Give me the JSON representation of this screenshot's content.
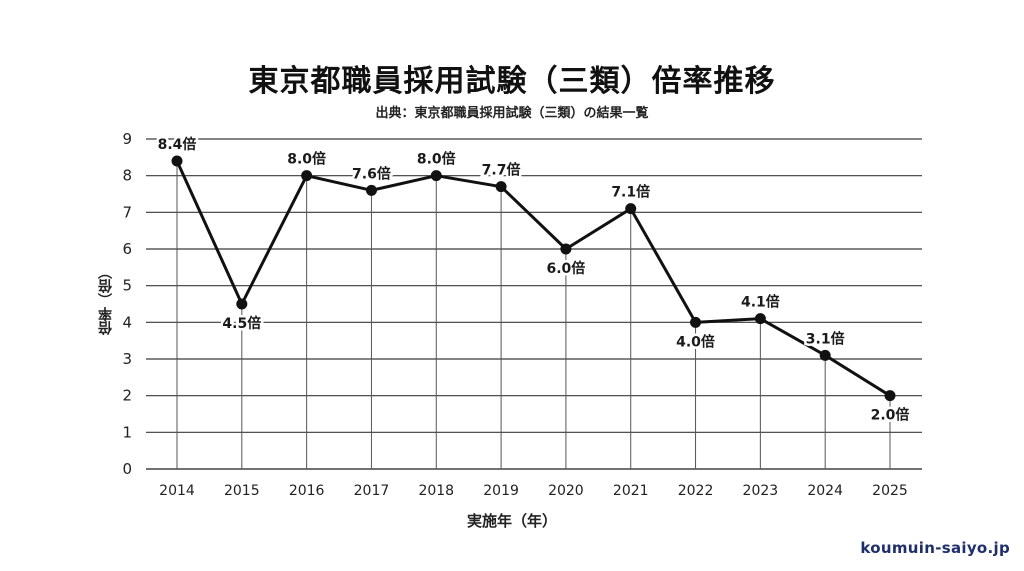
{
  "header": {
    "title": "東京都職員採用試験（三類）倍率推移",
    "subtitle": "出典：東京都職員採用試験（三類）の結果一覧"
  },
  "axes": {
    "xlabel": "実施年（年）",
    "ylabel": "倍率（倍）"
  },
  "watermark": "koumuin-saiyo.jp",
  "colors": {
    "line": "#111111",
    "grid": "#333333",
    "watermark": "#1f2f6b"
  },
  "chart_data": {
    "type": "line",
    "title": "東京都職員採用試験（三類）倍率推移",
    "subtitle": "出典：東京都職員採用試験（三類）の結果一覧",
    "xlabel": "実施年（年）",
    "ylabel": "倍率（倍）",
    "x": [
      "2014",
      "2015",
      "2016",
      "2017",
      "2018",
      "2019",
      "2020",
      "2021",
      "2022",
      "2023",
      "2024",
      "2025"
    ],
    "series": [
      {
        "name": "倍率",
        "values": [
          8.4,
          4.5,
          8.0,
          7.6,
          8.0,
          7.7,
          6.0,
          7.1,
          4.0,
          4.1,
          3.1,
          2.0
        ]
      }
    ],
    "data_labels": [
      "8.4倍",
      "4.5倍",
      "8.0倍",
      "7.6倍",
      "8.0倍",
      "7.7倍",
      "6.0倍",
      "7.1倍",
      "4.0倍",
      "4.1倍",
      "3.1倍",
      "2.0倍"
    ],
    "label_position": [
      "above",
      "below",
      "above",
      "above",
      "above",
      "above",
      "below",
      "above",
      "below",
      "above",
      "above",
      "below"
    ],
    "ylim": [
      0,
      9
    ],
    "yticks": [
      0,
      1,
      2,
      3,
      4,
      5,
      6,
      7,
      8,
      9
    ],
    "grid": true,
    "legend": null
  }
}
